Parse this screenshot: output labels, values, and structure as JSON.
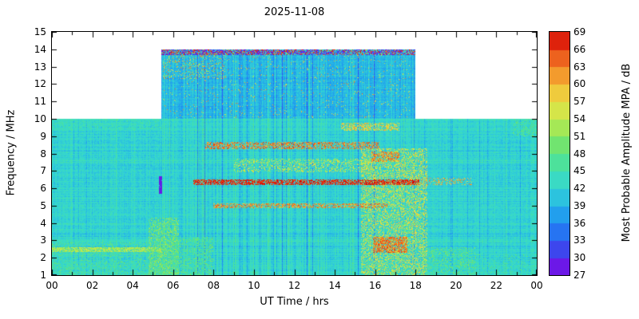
{
  "chart_data": {
    "type": "heatmap",
    "title": "2025-11-08",
    "xlabel": "UT Time / hrs",
    "ylabel": "Frequency / MHz",
    "colorbar_label": "Most Probable Amplitude MPA / dB",
    "xlim": [
      0,
      24
    ],
    "ylim": [
      1,
      15
    ],
    "x_major_ticks": [
      0,
      2,
      4,
      6,
      8,
      10,
      12,
      14,
      16,
      18,
      20,
      22,
      24
    ],
    "x_tick_labels": [
      "00",
      "02",
      "04",
      "06",
      "08",
      "10",
      "12",
      "14",
      "16",
      "18",
      "20",
      "22",
      "00"
    ],
    "x_minor_step": 1,
    "y_ticks": [
      1,
      2,
      3,
      4,
      5,
      6,
      7,
      8,
      9,
      10,
      11,
      12,
      13,
      14,
      15
    ],
    "grid": false,
    "colorbar": {
      "min": 27,
      "max": 69,
      "tick_step": 3,
      "ticks": [
        27,
        30,
        33,
        36,
        39,
        42,
        45,
        48,
        51,
        54,
        57,
        60,
        63,
        66,
        69
      ],
      "segments": 14,
      "stops": [
        {
          "v": 27,
          "c": "#8a00e6"
        },
        {
          "v": 30,
          "c": "#4d2fe8"
        },
        {
          "v": 33,
          "c": "#2d5cf2"
        },
        {
          "v": 36,
          "c": "#1f8cf2"
        },
        {
          "v": 39,
          "c": "#25b2e8"
        },
        {
          "v": 42,
          "c": "#33d4d4"
        },
        {
          "v": 45,
          "c": "#41e0b3"
        },
        {
          "v": 48,
          "c": "#58e282"
        },
        {
          "v": 51,
          "c": "#8ae65e"
        },
        {
          "v": 54,
          "c": "#c0ea4e"
        },
        {
          "v": 57,
          "c": "#eadf43"
        },
        {
          "v": 60,
          "c": "#f4b636"
        },
        {
          "v": 63,
          "c": "#f28024"
        },
        {
          "v": 66,
          "c": "#e84417"
        },
        {
          "v": 69,
          "c": "#d40000"
        }
      ]
    },
    "data_regions": [
      {
        "name": "full-day-band",
        "t0": 0,
        "t1": 24,
        "f0": 1,
        "f1": 10,
        "base_db": 42.3
      },
      {
        "name": "daytime-band",
        "t0": 5.4,
        "t1": 18,
        "f0": 10,
        "f1": 14,
        "base_db": 39.6
      }
    ],
    "features": [
      {
        "name": "night-low-band-green",
        "t0": 0,
        "t1": 6.2,
        "f0": 1,
        "f1": 2.9,
        "db": 47,
        "density": 0.3,
        "jitter": 6
      },
      {
        "name": "2p5MHz-yellow-line",
        "t0": 0,
        "t1": 5.4,
        "f0": 2.35,
        "f1": 2.6,
        "db": 53,
        "density": 0.75,
        "jitter": 5
      },
      {
        "name": "sunrise-green-column",
        "t0": 4.8,
        "t1": 6.3,
        "f0": 1,
        "f1": 4.3,
        "db": 50,
        "density": 0.45,
        "jitter": 6
      },
      {
        "name": "morning-low-green",
        "t0": 6,
        "t1": 8,
        "f0": 1,
        "f1": 3.2,
        "db": 48,
        "density": 0.35,
        "jitter": 5
      },
      {
        "name": "night-9p7-green",
        "t0": 0,
        "t1": 5.4,
        "f0": 9.4,
        "f1": 10,
        "db": 45,
        "density": 0.35,
        "jitter": 4
      },
      {
        "name": "afternoon-warm-blob",
        "t0": 15.3,
        "t1": 18.6,
        "f0": 1.0,
        "f1": 8.3,
        "db": 55,
        "density": 0.4,
        "jitter": 9
      },
      {
        "name": "8p5MHz-red-streak",
        "t0": 7.6,
        "t1": 16.2,
        "f0": 8.25,
        "f1": 8.65,
        "db": 63,
        "density": 0.5,
        "jitter": 8
      },
      {
        "name": "6p3MHz-red-line",
        "t0": 7.0,
        "t1": 18.2,
        "f0": 6.2,
        "f1": 6.5,
        "db": 67,
        "density": 0.65,
        "jitter": 5
      },
      {
        "name": "5MHz-red-streak",
        "t0": 8.0,
        "t1": 16.6,
        "f0": 4.85,
        "f1": 5.15,
        "db": 62,
        "density": 0.5,
        "jitter": 8
      },
      {
        "name": "7MHz-warm-speckle",
        "t0": 9,
        "t1": 16,
        "f0": 6.9,
        "f1": 7.7,
        "db": 54,
        "density": 0.3,
        "jitter": 8
      },
      {
        "name": "afternoon-red-patch-3MHz",
        "t0": 15.9,
        "t1": 17.6,
        "f0": 2.3,
        "f1": 3.2,
        "db": 64,
        "density": 0.6,
        "jitter": 6
      },
      {
        "name": "afternoon-red-8MHz",
        "t0": 15.8,
        "t1": 17.2,
        "f0": 7.5,
        "f1": 8.1,
        "db": 63,
        "density": 0.5,
        "jitter": 6
      },
      {
        "name": "9p5MHz-orange-streak",
        "t0": 14.3,
        "t1": 17.2,
        "f0": 9.3,
        "f1": 9.75,
        "db": 58,
        "density": 0.45,
        "jitter": 7
      },
      {
        "name": "late-6p3-red",
        "t0": 18.2,
        "t1": 20.8,
        "f0": 6.2,
        "f1": 6.6,
        "db": 60,
        "density": 0.25,
        "jitter": 8
      },
      {
        "name": "purple-dash",
        "t0": 5.28,
        "t1": 5.45,
        "f0": 5.7,
        "f1": 6.7,
        "db": 29,
        "density": 0.92,
        "jitter": 2
      },
      {
        "name": "evening-low-green",
        "t0": 18.4,
        "t1": 21,
        "f0": 1,
        "f1": 2.6,
        "db": 48,
        "density": 0.3,
        "jitter": 6
      },
      {
        "name": "upper-band-speckle",
        "t0": 5.5,
        "t1": 8.6,
        "f0": 12.3,
        "f1": 13.7,
        "mode": "speckle",
        "db": 56,
        "density": 0.14,
        "jitter": 18
      },
      {
        "name": "upper-band-flecks",
        "t0": 5.5,
        "t1": 17.9,
        "f0": 10.05,
        "f1": 13.65,
        "mode": "speckle",
        "db": 57,
        "density": 0.035,
        "jitter": 14
      },
      {
        "name": "top-edge-chaos",
        "t0": 5.4,
        "t1": 18,
        "f0": 13.68,
        "f1": 14.0,
        "mode": "chaos"
      },
      {
        "name": "right-edge-green-9p5",
        "t0": 22.8,
        "t1": 24,
        "f0": 9.0,
        "f1": 10.0,
        "db": 47,
        "density": 0.4,
        "jitter": 5
      },
      {
        "name": "night-right-low-speckle",
        "t0": 21,
        "t1": 24,
        "f0": 1,
        "f1": 2.2,
        "db": 46,
        "density": 0.2,
        "jitter": 5
      }
    ]
  }
}
